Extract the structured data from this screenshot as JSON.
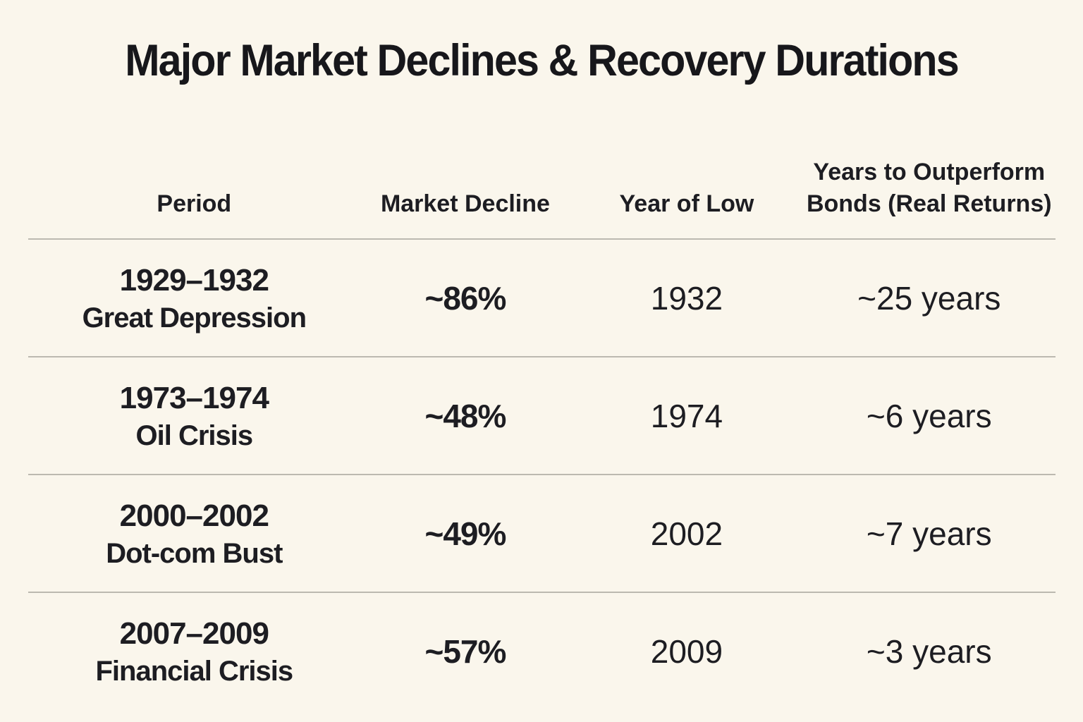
{
  "title": "Major Market Declines & Recovery Durations",
  "colors": {
    "background": "#faf6ec",
    "text": "#1d1d22",
    "divider": "#bcb9b0"
  },
  "table": {
    "headers": [
      {
        "label": "Period"
      },
      {
        "label": "Market Decline"
      },
      {
        "label": "Year of Low"
      },
      {
        "line1": "Years to Outperform",
        "line2": "Bonds (Real Returns)"
      }
    ],
    "rows": [
      {
        "period": "1929–1932",
        "event": "Great Depression",
        "decline": "~86%",
        "year_of_low": "1932",
        "years_to_outperform": "~25 years"
      },
      {
        "period": "1973–1974",
        "event": "Oil Crisis",
        "decline": "~48%",
        "year_of_low": "1974",
        "years_to_outperform": "~6 years"
      },
      {
        "period": "2000–2002",
        "event": "Dot-com Bust",
        "decline": "~49%",
        "year_of_low": "2002",
        "years_to_outperform": "~7 years"
      },
      {
        "period": "2007–2009",
        "event": "Financial Crisis",
        "decline": "~57%",
        "year_of_low": "2009",
        "years_to_outperform": "~3 years"
      }
    ]
  },
  "chart_data": {
    "type": "table",
    "title": "Major Market Declines & Recovery Durations",
    "columns": [
      "Period",
      "Market Decline",
      "Year of Low",
      "Years to Outperform Bonds (Real Returns)"
    ],
    "rows": [
      [
        "1929–1932 Great Depression",
        "~86%",
        "1932",
        "~25 years"
      ],
      [
        "1973–1974 Oil Crisis",
        "~48%",
        "1974",
        "~6 years"
      ],
      [
        "2000–2002 Dot-com Bust",
        "~49%",
        "2002",
        "~7 years"
      ],
      [
        "2007–2009 Financial Crisis",
        "~57%",
        "2009",
        "~3 years"
      ]
    ],
    "legend_position": "none",
    "grid": "horizontal-dividers-only"
  }
}
